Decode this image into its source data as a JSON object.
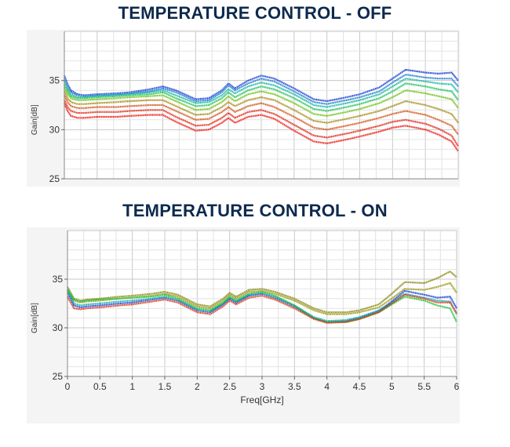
{
  "chart_data": [
    {
      "type": "line",
      "title": "TEMPERATURE CONTROL - OFF",
      "xlabel": "",
      "ylabel": "Gain[dB]",
      "xlim": [
        0,
        6
      ],
      "ylim": [
        25,
        40
      ],
      "yticks": [
        "35",
        "30",
        "25"
      ],
      "xticks": [],
      "grid": true,
      "x": [
        0,
        0.05,
        0.1,
        0.2,
        0.3,
        0.5,
        0.8,
        1.0,
        1.3,
        1.5,
        1.7,
        2.0,
        2.2,
        2.4,
        2.5,
        2.6,
        2.8,
        3.0,
        3.2,
        3.5,
        3.8,
        4.0,
        4.3,
        4.5,
        4.8,
        5.0,
        5.2,
        5.5,
        5.7,
        5.9,
        6.0
      ],
      "series": [
        {
          "color": "#1a3fd8",
          "values": [
            35.5,
            34.6,
            34.0,
            33.6,
            33.5,
            33.6,
            33.7,
            33.8,
            34.1,
            34.4,
            34.0,
            33.1,
            33.2,
            34.0,
            34.7,
            34.2,
            35.0,
            35.5,
            35.2,
            34.2,
            33.1,
            32.9,
            33.3,
            33.6,
            34.3,
            35.2,
            36.1,
            35.8,
            35.7,
            35.8,
            35.0
          ]
        },
        {
          "color": "#1f7fd0",
          "values": [
            35.2,
            34.3,
            33.8,
            33.5,
            33.4,
            33.5,
            33.6,
            33.7,
            33.9,
            34.2,
            33.8,
            32.9,
            33.0,
            33.8,
            34.5,
            34.0,
            34.7,
            35.2,
            34.9,
            33.9,
            32.8,
            32.6,
            33.0,
            33.3,
            33.9,
            34.8,
            35.6,
            35.3,
            35.2,
            35.2,
            34.4
          ]
        },
        {
          "color": "#18b6a4",
          "values": [
            34.9,
            34.1,
            33.6,
            33.3,
            33.3,
            33.4,
            33.5,
            33.6,
            33.8,
            34.0,
            33.5,
            32.7,
            32.8,
            33.5,
            34.1,
            33.7,
            34.4,
            34.8,
            34.5,
            33.6,
            32.5,
            32.3,
            32.7,
            33.0,
            33.6,
            34.4,
            35.2,
            34.9,
            34.7,
            34.6,
            33.8
          ]
        },
        {
          "color": "#1cc25a",
          "values": [
            34.6,
            33.9,
            33.4,
            33.2,
            33.2,
            33.3,
            33.4,
            33.5,
            33.6,
            33.8,
            33.2,
            32.4,
            32.5,
            33.2,
            33.8,
            33.3,
            34.0,
            34.4,
            34.1,
            33.2,
            32.1,
            31.9,
            32.3,
            32.6,
            33.2,
            33.9,
            34.7,
            34.4,
            34.1,
            33.9,
            33.0
          ]
        },
        {
          "color": "#6ec218",
          "values": [
            34.3,
            33.6,
            33.2,
            33.0,
            33.0,
            33.1,
            33.2,
            33.3,
            33.4,
            33.5,
            32.9,
            32.0,
            32.1,
            32.8,
            33.4,
            32.9,
            33.6,
            33.9,
            33.6,
            32.7,
            31.6,
            31.4,
            31.8,
            32.1,
            32.7,
            33.3,
            34.0,
            33.7,
            33.4,
            33.1,
            32.2
          ]
        },
        {
          "color": "#a68c1a",
          "values": [
            33.9,
            33.2,
            32.8,
            32.6,
            32.6,
            32.7,
            32.8,
            32.9,
            33.0,
            33.0,
            32.4,
            31.5,
            31.6,
            32.3,
            32.8,
            32.4,
            33.0,
            33.3,
            33.0,
            32.0,
            30.9,
            30.7,
            31.1,
            31.4,
            31.9,
            32.4,
            32.9,
            32.5,
            32.1,
            31.6,
            30.7
          ]
        },
        {
          "color": "#d2561a",
          "values": [
            33.5,
            32.8,
            32.4,
            32.2,
            32.2,
            32.3,
            32.3,
            32.4,
            32.5,
            32.5,
            31.9,
            31.0,
            31.1,
            31.8,
            32.3,
            31.8,
            32.4,
            32.7,
            32.3,
            31.3,
            30.2,
            30.0,
            30.4,
            30.7,
            31.2,
            31.6,
            31.9,
            31.5,
            31.0,
            30.4,
            29.5
          ]
        },
        {
          "color": "#e02a1a",
          "values": [
            33.0,
            32.3,
            31.9,
            31.7,
            31.7,
            31.8,
            31.8,
            31.9,
            32.0,
            32.0,
            31.3,
            30.4,
            30.5,
            31.2,
            31.7,
            31.2,
            31.8,
            32.0,
            31.6,
            30.5,
            29.4,
            29.2,
            29.6,
            29.9,
            30.4,
            30.8,
            31.0,
            30.6,
            30.1,
            29.4,
            28.3
          ]
        },
        {
          "color": "#ee1d16",
          "values": [
            32.7,
            31.9,
            31.4,
            31.2,
            31.2,
            31.3,
            31.3,
            31.4,
            31.5,
            31.5,
            30.8,
            29.9,
            30.0,
            30.7,
            31.2,
            30.7,
            31.3,
            31.5,
            31.1,
            29.9,
            28.8,
            28.6,
            29.0,
            29.3,
            29.8,
            30.2,
            30.4,
            30.0,
            29.5,
            28.8,
            27.8
          ]
        }
      ]
    },
    {
      "type": "line",
      "title": "TEMPERATURE CONTROL - ON",
      "xlabel": "Freq[GHz]",
      "ylabel": "Gain[dB]",
      "xlim": [
        0,
        6
      ],
      "ylim": [
        25,
        40
      ],
      "yticks": [
        "35",
        "30",
        "25"
      ],
      "xticks": [
        "0",
        "0.5",
        "1",
        "1.5",
        "2",
        "2.5",
        "3",
        "3.5",
        "4",
        "4.5",
        "5",
        "5.5",
        "6"
      ],
      "grid": true,
      "x": [
        0,
        0.05,
        0.1,
        0.2,
        0.3,
        0.5,
        0.8,
        1.0,
        1.3,
        1.5,
        1.7,
        2.0,
        2.2,
        2.4,
        2.5,
        2.6,
        2.8,
        3.0,
        3.2,
        3.5,
        3.8,
        4.0,
        4.3,
        4.5,
        4.8,
        5.0,
        5.2,
        5.5,
        5.7,
        5.9,
        6.0
      ],
      "series": [
        {
          "color": "#8a8a18",
          "values": [
            34.2,
            33.6,
            33.0,
            32.8,
            32.9,
            33.0,
            33.2,
            33.3,
            33.5,
            33.7,
            33.4,
            32.4,
            32.2,
            33.0,
            33.6,
            33.2,
            33.9,
            34.0,
            33.7,
            33.0,
            32.0,
            31.6,
            31.6,
            31.8,
            32.4,
            33.5,
            34.7,
            34.6,
            35.1,
            35.8,
            35.2
          ]
        },
        {
          "color": "#9a9a1a",
          "values": [
            33.9,
            33.3,
            32.8,
            32.6,
            32.7,
            32.8,
            33.0,
            33.1,
            33.3,
            33.5,
            33.2,
            32.2,
            32.0,
            32.8,
            33.4,
            33.0,
            33.7,
            33.8,
            33.5,
            32.8,
            31.8,
            31.4,
            31.4,
            31.6,
            32.1,
            33.0,
            34.0,
            33.9,
            34.2,
            34.6,
            33.6
          ]
        },
        {
          "color": "#1a3fd8",
          "values": [
            33.6,
            33.0,
            32.3,
            32.1,
            32.2,
            32.3,
            32.5,
            32.6,
            32.9,
            33.1,
            32.8,
            31.8,
            31.6,
            32.4,
            33.0,
            32.6,
            33.3,
            33.5,
            33.1,
            32.2,
            31.0,
            30.6,
            30.7,
            31.0,
            31.7,
            32.7,
            33.8,
            33.4,
            33.1,
            33.2,
            32.0
          ]
        },
        {
          "color": "#1aa8b0",
          "values": [
            33.8,
            33.2,
            32.5,
            32.3,
            32.4,
            32.5,
            32.7,
            32.8,
            33.0,
            33.2,
            32.9,
            31.9,
            31.7,
            32.5,
            33.1,
            32.7,
            33.4,
            33.6,
            33.2,
            32.3,
            31.1,
            30.7,
            30.8,
            31.1,
            31.8,
            32.6,
            33.5,
            33.1,
            32.8,
            32.7,
            31.4
          ]
        },
        {
          "color": "#22c23a",
          "values": [
            34.0,
            33.5,
            32.9,
            32.7,
            32.8,
            32.9,
            33.0,
            33.1,
            33.2,
            33.4,
            33.0,
            32.0,
            31.8,
            32.6,
            33.2,
            32.8,
            33.5,
            33.7,
            33.3,
            32.3,
            31.0,
            30.6,
            30.6,
            30.9,
            31.6,
            32.4,
            33.2,
            32.8,
            32.3,
            32.0,
            30.6
          ]
        },
        {
          "color": "#d83a1a",
          "values": [
            33.2,
            32.6,
            32.0,
            31.9,
            32.0,
            32.1,
            32.3,
            32.4,
            32.7,
            32.9,
            32.6,
            31.6,
            31.4,
            32.2,
            32.8,
            32.4,
            33.1,
            33.3,
            32.9,
            32.0,
            30.9,
            30.5,
            30.6,
            30.9,
            31.6,
            32.5,
            33.4,
            33.0,
            32.6,
            32.6,
            31.5
          ]
        }
      ]
    }
  ]
}
